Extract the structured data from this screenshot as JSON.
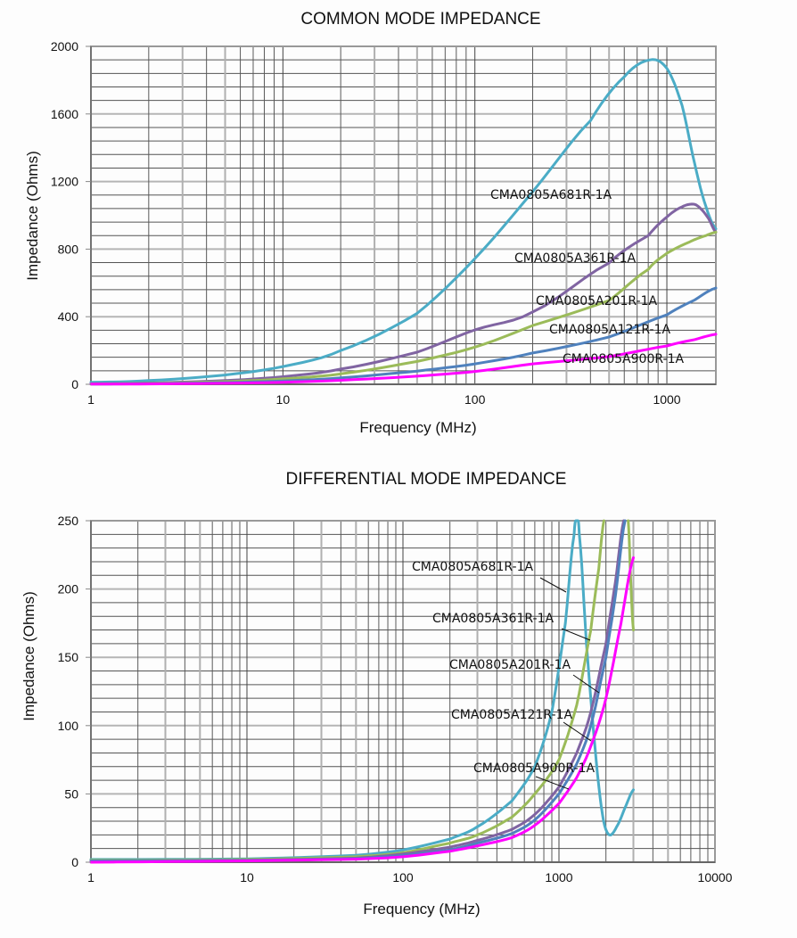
{
  "chart_data": [
    {
      "type": "line",
      "title": "COMMON MODE IMPEDANCE",
      "xlabel": "Frequency (MHz)",
      "ylabel": "Impedance (Ohms)",
      "xscale": "log",
      "xlim": [
        1,
        1800
      ],
      "ylim": [
        0,
        2000
      ],
      "xticks": [
        1,
        10,
        100,
        1000
      ],
      "xtick_labels": [
        "1",
        "10",
        "100",
        "1000"
      ],
      "yticks": [
        0,
        400,
        800,
        1200,
        1600,
        2000
      ],
      "ytick_labels": [
        "0",
        "400",
        "800",
        "1200",
        "1600",
        "2000"
      ],
      "grid": true,
      "series": [
        {
          "name": "CMA0805A681R-1A",
          "color": "#4bacc6",
          "x": [
            1,
            2,
            5,
            10,
            20,
            50,
            100,
            200,
            400,
            600,
            815,
            1000,
            1200,
            1400,
            1600,
            1800
          ],
          "y": [
            12,
            22,
            55,
            105,
            200,
            420,
            744,
            1140,
            1560,
            1820,
            1920,
            1870,
            1650,
            1300,
            1050,
            920
          ]
        },
        {
          "name": "CMA0805A361R-1A",
          "color": "#8064a2",
          "x": [
            1,
            2,
            5,
            10,
            20,
            50,
            100,
            200,
            500,
            800,
            1000,
            1200,
            1380,
            1500,
            1650,
            1800
          ],
          "y": [
            3,
            8,
            22,
            45,
            90,
            190,
            322,
            428,
            718,
            880,
            990,
            1050,
            1066,
            1040,
            980,
            900
          ]
        },
        {
          "name": "CMA0805A201R-1A",
          "color": "#9bbb59",
          "x": [
            1,
            2,
            5,
            10,
            20,
            50,
            100,
            200,
            500,
            800,
            1000,
            1300,
            1600,
            1800
          ],
          "y": [
            2,
            6,
            16,
            32,
            62,
            135,
            220,
            348,
            496,
            680,
            775,
            840,
            880,
            900
          ]
        },
        {
          "name": "CMA0805A121R-1A",
          "color": "#4f81bd",
          "x": [
            1,
            2,
            5,
            10,
            20,
            50,
            100,
            200,
            500,
            1000,
            1400,
            1800
          ],
          "y": [
            1,
            4,
            10,
            20,
            38,
            78,
            121,
            185,
            280,
            411,
            500,
            570
          ]
        },
        {
          "name": "CMA0805A900R-1A",
          "color": "#ff00ff",
          "x": [
            1,
            2,
            5,
            10,
            20,
            50,
            100,
            200,
            500,
            1000,
            1400,
            1800
          ],
          "y": [
            1,
            2,
            6,
            12,
            24,
            48,
            76,
            121,
            164,
            227,
            265,
            296
          ]
        }
      ]
    },
    {
      "type": "line",
      "title": "DIFFERENTIAL MODE IMPEDANCE",
      "xlabel": "Frequency (MHz)",
      "ylabel": "Impedance (Ohms)",
      "xscale": "log",
      "xlim": [
        1,
        10000
      ],
      "ylim": [
        0,
        250
      ],
      "xticks": [
        1,
        10,
        100,
        1000,
        10000
      ],
      "xtick_labels": [
        "1",
        "10",
        "100",
        "1000",
        "10000"
      ],
      "yticks": [
        0,
        50,
        100,
        150,
        200,
        250
      ],
      "ytick_labels": [
        "0",
        "50",
        "100",
        "150",
        "200",
        "250"
      ],
      "grid": true,
      "series": [
        {
          "name": "CMA0805A681R-1A",
          "color": "#4bacc6",
          "x": [
            1,
            10,
            50,
            100,
            200,
            300,
            500,
            700,
            900,
            1100,
            1250,
            1300,
            1350,
            1500,
            1700,
            1900,
            2100,
            2400,
            2700,
            3000
          ],
          "y": [
            2,
            2.5,
            5,
            9,
            17,
            26,
            45,
            70,
            110,
            175,
            240,
            250,
            240,
            160,
            85,
            35,
            20,
            28,
            42,
            53
          ]
        },
        {
          "name": "CMA0805A361R-1A",
          "color": "#9bbb59",
          "x": [
            1,
            10,
            50,
            100,
            200,
            300,
            500,
            700,
            1000,
            1300,
            1600,
            1800,
            1940
          ],
          "y": [
            1.5,
            2,
            4,
            7,
            14,
            20,
            33,
            50,
            75,
            115,
            170,
            215,
            250
          ]
        },
        {
          "name": "CMA0805A361R-1A-b",
          "color": "#9bbb59",
          "x": [
            2780,
            2900,
            3000
          ],
          "y": [
            250,
            200,
            170
          ]
        },
        {
          "name": "CMA0805A201R-1A",
          "color": "#8064a2",
          "x": [
            1,
            10,
            50,
            100,
            200,
            300,
            500,
            700,
            1000,
            1300,
            1600,
            2000,
            2300,
            2600
          ],
          "y": [
            1,
            1.5,
            3,
            6,
            11,
            16,
            24,
            35,
            55,
            80,
            110,
            160,
            205,
            250
          ]
        },
        {
          "name": "CMA0805A121R-1A",
          "color": "#4f81bd",
          "x": [
            1,
            10,
            50,
            100,
            200,
            300,
            500,
            700,
            1000,
            1300,
            1600,
            2000,
            2300,
            2650
          ],
          "y": [
            1,
            1.3,
            2.6,
            5,
            9,
            14,
            21,
            31,
            50,
            72,
            100,
            150,
            195,
            250
          ]
        },
        {
          "name": "CMA0805A900R-1A",
          "color": "#ff00ff",
          "x": [
            1,
            10,
            50,
            100,
            200,
            300,
            500,
            700,
            1000,
            1300,
            1600,
            2000,
            2500,
            3000
          ],
          "y": [
            0,
            1,
            2.2,
            4,
            8,
            12,
            18,
            27,
            43,
            62,
            85,
            120,
            175,
            223
          ]
        }
      ],
      "annotations": [
        {
          "text": "CMA0805A681R-1A",
          "x": 1150,
          "y": 200
        },
        {
          "text": "CMA0805A361R-1A",
          "x": 1600,
          "y": 163
        },
        {
          "text": "CMA0805A201R-1A",
          "x": 2050,
          "y": 125
        },
        {
          "text": "CMA0805A121R-1A",
          "x": 2150,
          "y": 88
        },
        {
          "text": "CMA0805A900R-1A",
          "x": 1200,
          "y": 60
        }
      ]
    }
  ]
}
